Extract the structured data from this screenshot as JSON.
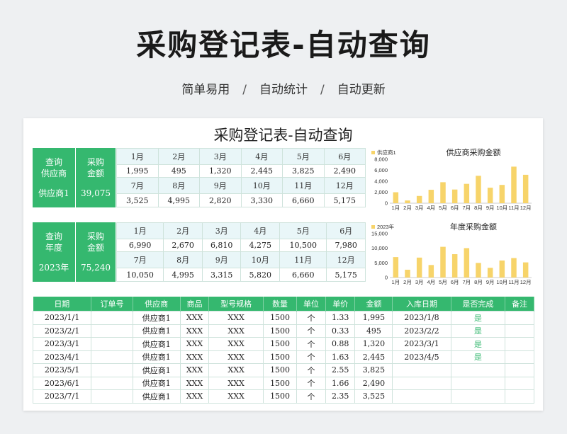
{
  "hero": {
    "title": "采购登记表-自动查询",
    "sub1": "简单易用",
    "sep": "/",
    "sub2": "自动统计",
    "sub3": "自动更新"
  },
  "sheet_title": "采购登记表-自动查询",
  "supplier_query": {
    "label1": "查询",
    "label2": "供应商",
    "value": "供应商1",
    "amount_label1": "采购",
    "amount_label2": "金额",
    "amount": "39,075",
    "months_row1": [
      "1月",
      "2月",
      "3月",
      "4月",
      "5月",
      "6月"
    ],
    "values_row1": [
      "1,995",
      "495",
      "1,320",
      "2,445",
      "3,825",
      "2,490"
    ],
    "months_row2": [
      "7月",
      "8月",
      "9月",
      "10月",
      "11月",
      "12月"
    ],
    "values_row2": [
      "3,525",
      "4,995",
      "2,820",
      "3,330",
      "6,660",
      "5,175"
    ]
  },
  "year_query": {
    "label1": "查询",
    "label2": "年度",
    "value": "2023年",
    "amount_label1": "采购",
    "amount_label2": "金额",
    "amount": "75,240",
    "months_row1": [
      "1月",
      "2月",
      "3月",
      "4月",
      "5月",
      "6月"
    ],
    "values_row1": [
      "6,990",
      "2,670",
      "6,810",
      "4,275",
      "10,500",
      "7,980"
    ],
    "months_row2": [
      "7月",
      "8月",
      "9月",
      "10月",
      "11月",
      "12月"
    ],
    "values_row2": [
      "10,050",
      "4,995",
      "3,315",
      "5,820",
      "6,660",
      "5,175"
    ]
  },
  "chart_data": [
    {
      "type": "bar",
      "title": "供应商采购金额",
      "legend": "供应商1",
      "categories": [
        "1月",
        "2月",
        "3月",
        "4月",
        "5月",
        "6月",
        "7月",
        "8月",
        "9月",
        "10月",
        "11月",
        "12月"
      ],
      "values": [
        1995,
        495,
        1320,
        2445,
        3825,
        2490,
        3525,
        4995,
        2820,
        3330,
        6660,
        5175
      ],
      "yticks": [
        "0",
        "2,000",
        "4,000",
        "6,000",
        "8,000"
      ],
      "ylim": [
        0,
        8000
      ],
      "color": "#f7d46a"
    },
    {
      "type": "bar",
      "title": "年度采购金额",
      "legend": "2023年",
      "categories": [
        "1月",
        "2月",
        "3月",
        "4月",
        "5月",
        "6月",
        "7月",
        "8月",
        "9月",
        "10月",
        "11月",
        "12月"
      ],
      "values": [
        6990,
        2670,
        6810,
        4275,
        10500,
        7980,
        10050,
        4995,
        3315,
        5820,
        6660,
        5175
      ],
      "yticks": [
        "0",
        "5,000",
        "10,000",
        "15,000"
      ],
      "ylim": [
        0,
        15000
      ],
      "color": "#f7d46a"
    }
  ],
  "main_table": {
    "headers": [
      "日期",
      "订单号",
      "供应商",
      "商品",
      "型号规格",
      "数量",
      "单位",
      "单价",
      "金额",
      "入库日期",
      "是否完成",
      "备注"
    ],
    "rows": [
      [
        "2023/1/1",
        "",
        "供应商1",
        "XXX",
        "XXX",
        "1500",
        "个",
        "1.33",
        "1,995",
        "2023/1/8",
        "是",
        ""
      ],
      [
        "2023/2/1",
        "",
        "供应商1",
        "XXX",
        "XXX",
        "1500",
        "个",
        "0.33",
        "495",
        "2023/2/2",
        "是",
        ""
      ],
      [
        "2023/3/1",
        "",
        "供应商1",
        "XXX",
        "XXX",
        "1500",
        "个",
        "0.88",
        "1,320",
        "2023/3/1",
        "是",
        ""
      ],
      [
        "2023/4/1",
        "",
        "供应商1",
        "XXX",
        "XXX",
        "1500",
        "个",
        "1.63",
        "2,445",
        "2023/4/5",
        "是",
        ""
      ],
      [
        "2023/5/1",
        "",
        "供应商1",
        "XXX",
        "XXX",
        "1500",
        "个",
        "2.55",
        "3,825",
        "",
        "",
        ""
      ],
      [
        "2023/6/1",
        "",
        "供应商1",
        "XXX",
        "XXX",
        "1500",
        "个",
        "1.66",
        "2,490",
        "",
        "",
        ""
      ],
      [
        "2023/7/1",
        "",
        "供应商1",
        "XXX",
        "XXX",
        "1500",
        "个",
        "2.35",
        "3,525",
        "",
        "",
        ""
      ]
    ]
  }
}
